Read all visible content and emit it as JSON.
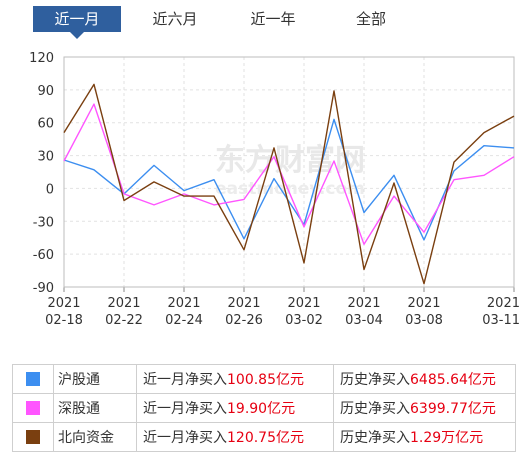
{
  "tabs": [
    {
      "label": "近一月",
      "active": true
    },
    {
      "label": "近六月",
      "active": false
    },
    {
      "label": "近一年",
      "active": false
    },
    {
      "label": "全部",
      "active": false
    }
  ],
  "watermark": {
    "cn": "东方财富网",
    "en": "eastmoney.com"
  },
  "chart_data": {
    "type": "line",
    "y_ticks": [
      120,
      90,
      60,
      30,
      0,
      -30,
      -60,
      -90
    ],
    "ylim": [
      -90,
      120
    ],
    "grid": true,
    "x_tick_labels": [
      {
        "year": "2021",
        "date": "02-18",
        "index": 0
      },
      {
        "year": "2021",
        "date": "02-22",
        "index": 2
      },
      {
        "year": "2021",
        "date": "02-24",
        "index": 4
      },
      {
        "year": "2021",
        "date": "02-26",
        "index": 6
      },
      {
        "year": "2021",
        "date": "03-02",
        "index": 8
      },
      {
        "year": "2021",
        "date": "03-04",
        "index": 10
      },
      {
        "year": "2021",
        "date": "03-08",
        "index": 12
      },
      {
        "year": "2021",
        "date": "03-11",
        "index": 15
      }
    ],
    "point_count": 16,
    "series": [
      {
        "name": "沪股通",
        "color": "#3c8ef0",
        "values": [
          26,
          17,
          -5,
          21,
          -2,
          8,
          -46,
          9,
          -33,
          63,
          -22,
          12,
          -47,
          16,
          39,
          37
        ]
      },
      {
        "name": "深股通",
        "color": "#ff55ff",
        "values": [
          25,
          77,
          -5,
          -15,
          -5,
          -15,
          -10,
          29,
          -35,
          25,
          -51,
          -7,
          -40,
          8,
          12,
          29
        ]
      },
      {
        "name": "北向资金",
        "color": "#7a3f10",
        "values": [
          51,
          95,
          -11,
          6,
          -7,
          -7,
          -56,
          37,
          -68,
          89,
          -74,
          5,
          -87,
          24,
          51,
          66
        ]
      }
    ]
  },
  "legend": [
    {
      "name": "沪股通",
      "color": "#3c8ef0",
      "month_label": "近一月净买入",
      "month_value": "100.85亿元",
      "hist_label": "历史净买入",
      "hist_value": "6485.64亿元"
    },
    {
      "name": "深股通",
      "color": "#ff55ff",
      "month_label": "近一月净买入",
      "month_value": "19.90亿元",
      "hist_label": "历史净买入",
      "hist_value": "6399.77亿元"
    },
    {
      "name": "北向资金",
      "color": "#7a3f10",
      "month_label": "近一月净买入",
      "month_value": "120.75亿元",
      "hist_label": "历史净买入",
      "hist_value": "1.29万亿元"
    }
  ]
}
